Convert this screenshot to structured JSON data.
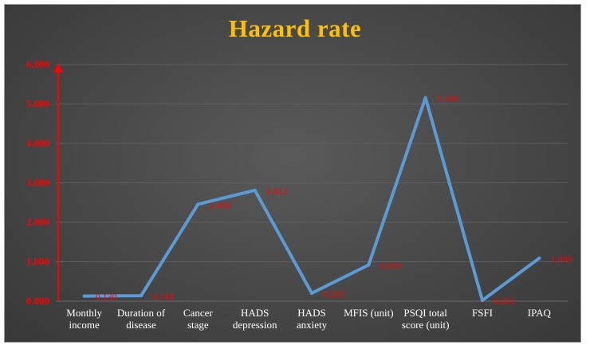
{
  "colors": {
    "line": "#5b9bd5",
    "title": "#ffc000",
    "axis": "#ff0000",
    "labels": "#ff0000",
    "categories": "#ffffff",
    "grid": "#5e5e5e"
  },
  "chart_data": {
    "type": "line",
    "title": "Hazard rate",
    "categories": [
      [
        "Monthly",
        "income"
      ],
      [
        "Duration of",
        "disease"
      ],
      [
        "Cancer",
        "stage"
      ],
      [
        "HADS",
        "depression"
      ],
      [
        "HADS",
        "anxiety"
      ],
      [
        "MFIS (unit)"
      ],
      [
        "PSQI total",
        "score (unit)"
      ],
      [
        "FSFI"
      ],
      [
        "IPAQ"
      ]
    ],
    "series": [
      {
        "values": [
          0.13,
          0.14,
          2.458,
          2.812,
          0.203,
          0.919,
          5.16,
          0.021,
          1.09
        ],
        "labels": [
          "0.130",
          "0.140",
          "2.458",
          "2.812",
          "0.203",
          "0.919",
          "5.160",
          "0.021",
          "1.090"
        ]
      }
    ],
    "ylim": [
      0,
      6
    ],
    "yticks": [
      "0.000",
      "1.000",
      "2.000",
      "3.000",
      "4.000",
      "5.000",
      "6.000"
    ],
    "grid": true,
    "legend": "none"
  }
}
